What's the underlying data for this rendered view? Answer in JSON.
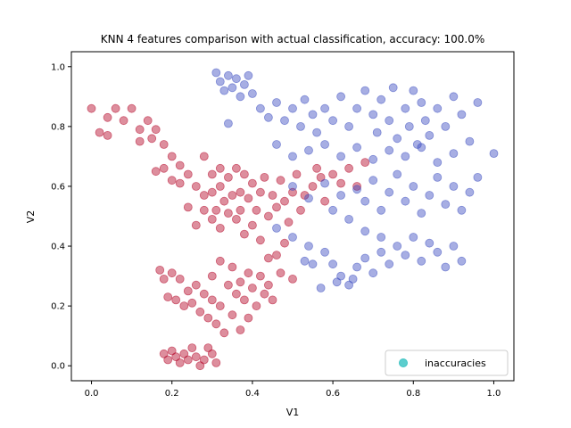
{
  "chart_data": {
    "type": "scatter",
    "title": "KNN 4 features comparison with actual classification, accuracy: 100.0%",
    "xlabel": "V1",
    "ylabel": "V2",
    "xlim": [
      -0.05,
      1.05
    ],
    "ylim": [
      -0.05,
      1.05
    ],
    "xticks": [
      "0.0",
      "0.2",
      "0.4",
      "0.6",
      "0.8",
      "1.0"
    ],
    "yticks": [
      "0.0",
      "0.2",
      "0.4",
      "0.6",
      "0.8",
      "1.0"
    ],
    "grid": false,
    "legend": {
      "position": "bottom-right",
      "entries": [
        "inaccuracies"
      ]
    },
    "colors": {
      "class_a": "#b40426",
      "class_b": "#3b4cc0",
      "inaccuracies": "#40c4c4"
    },
    "series": [
      {
        "class": "class_a",
        "points": [
          [
            0.0,
            0.86
          ],
          [
            0.02,
            0.78
          ],
          [
            0.04,
            0.77
          ],
          [
            0.04,
            0.83
          ],
          [
            0.06,
            0.86
          ],
          [
            0.08,
            0.82
          ],
          [
            0.1,
            0.86
          ],
          [
            0.12,
            0.79
          ],
          [
            0.12,
            0.75
          ],
          [
            0.14,
            0.82
          ],
          [
            0.15,
            0.76
          ],
          [
            0.16,
            0.79
          ],
          [
            0.16,
            0.65
          ],
          [
            0.18,
            0.74
          ],
          [
            0.18,
            0.66
          ],
          [
            0.2,
            0.7
          ],
          [
            0.2,
            0.62
          ],
          [
            0.22,
            0.67
          ],
          [
            0.22,
            0.61
          ],
          [
            0.24,
            0.64
          ],
          [
            0.24,
            0.53
          ],
          [
            0.26,
            0.6
          ],
          [
            0.26,
            0.47
          ],
          [
            0.28,
            0.7
          ],
          [
            0.28,
            0.57
          ],
          [
            0.28,
            0.52
          ],
          [
            0.3,
            0.64
          ],
          [
            0.3,
            0.58
          ],
          [
            0.3,
            0.49
          ],
          [
            0.31,
            0.52
          ],
          [
            0.32,
            0.66
          ],
          [
            0.32,
            0.6
          ],
          [
            0.32,
            0.46
          ],
          [
            0.33,
            0.55
          ],
          [
            0.34,
            0.63
          ],
          [
            0.34,
            0.51
          ],
          [
            0.35,
            0.57
          ],
          [
            0.36,
            0.66
          ],
          [
            0.36,
            0.49
          ],
          [
            0.37,
            0.58
          ],
          [
            0.37,
            0.52
          ],
          [
            0.38,
            0.64
          ],
          [
            0.38,
            0.44
          ],
          [
            0.39,
            0.56
          ],
          [
            0.4,
            0.61
          ],
          [
            0.4,
            0.47
          ],
          [
            0.41,
            0.52
          ],
          [
            0.42,
            0.58
          ],
          [
            0.42,
            0.42
          ],
          [
            0.43,
            0.63
          ],
          [
            0.44,
            0.5
          ],
          [
            0.45,
            0.57
          ],
          [
            0.46,
            0.53
          ],
          [
            0.47,
            0.62
          ],
          [
            0.48,
            0.55
          ],
          [
            0.49,
            0.48
          ],
          [
            0.5,
            0.58
          ],
          [
            0.51,
            0.64
          ],
          [
            0.52,
            0.52
          ],
          [
            0.53,
            0.57
          ],
          [
            0.55,
            0.6
          ],
          [
            0.56,
            0.66
          ],
          [
            0.57,
            0.63
          ],
          [
            0.58,
            0.55
          ],
          [
            0.6,
            0.64
          ],
          [
            0.62,
            0.61
          ],
          [
            0.64,
            0.66
          ],
          [
            0.66,
            0.6
          ],
          [
            0.68,
            0.68
          ],
          [
            0.48,
            0.41
          ],
          [
            0.46,
            0.37
          ],
          [
            0.44,
            0.36
          ],
          [
            0.47,
            0.31
          ],
          [
            0.5,
            0.29
          ],
          [
            0.17,
            0.32
          ],
          [
            0.18,
            0.29
          ],
          [
            0.2,
            0.31
          ],
          [
            0.19,
            0.23
          ],
          [
            0.21,
            0.22
          ],
          [
            0.22,
            0.29
          ],
          [
            0.23,
            0.2
          ],
          [
            0.24,
            0.25
          ],
          [
            0.25,
            0.21
          ],
          [
            0.26,
            0.27
          ],
          [
            0.27,
            0.18
          ],
          [
            0.28,
            0.24
          ],
          [
            0.29,
            0.16
          ],
          [
            0.3,
            0.3
          ],
          [
            0.3,
            0.22
          ],
          [
            0.31,
            0.14
          ],
          [
            0.32,
            0.35
          ],
          [
            0.32,
            0.2
          ],
          [
            0.33,
            0.11
          ],
          [
            0.34,
            0.27
          ],
          [
            0.35,
            0.33
          ],
          [
            0.35,
            0.17
          ],
          [
            0.36,
            0.24
          ],
          [
            0.37,
            0.28
          ],
          [
            0.37,
            0.12
          ],
          [
            0.38,
            0.22
          ],
          [
            0.39,
            0.31
          ],
          [
            0.39,
            0.16
          ],
          [
            0.4,
            0.26
          ],
          [
            0.41,
            0.2
          ],
          [
            0.42,
            0.3
          ],
          [
            0.43,
            0.24
          ],
          [
            0.44,
            0.27
          ],
          [
            0.45,
            0.22
          ],
          [
            0.18,
            0.04
          ],
          [
            0.19,
            0.02
          ],
          [
            0.2,
            0.05
          ],
          [
            0.21,
            0.03
          ],
          [
            0.22,
            0.01
          ],
          [
            0.23,
            0.04
          ],
          [
            0.24,
            0.02
          ],
          [
            0.25,
            0.06
          ],
          [
            0.26,
            0.03
          ],
          [
            0.27,
            0.0
          ],
          [
            0.28,
            0.02
          ],
          [
            0.29,
            0.06
          ],
          [
            0.3,
            0.04
          ],
          [
            0.31,
            0.01
          ]
        ]
      },
      {
        "class": "class_b",
        "points": [
          [
            0.31,
            0.98
          ],
          [
            0.32,
            0.95
          ],
          [
            0.33,
            0.92
          ],
          [
            0.34,
            0.97
          ],
          [
            0.35,
            0.93
          ],
          [
            0.36,
            0.96
          ],
          [
            0.37,
            0.9
          ],
          [
            0.38,
            0.94
          ],
          [
            0.39,
            0.97
          ],
          [
            0.4,
            0.91
          ],
          [
            0.34,
            0.81
          ],
          [
            0.42,
            0.86
          ],
          [
            0.44,
            0.83
          ],
          [
            0.46,
            0.88
          ],
          [
            0.48,
            0.82
          ],
          [
            0.5,
            0.86
          ],
          [
            0.52,
            0.8
          ],
          [
            0.53,
            0.89
          ],
          [
            0.55,
            0.84
          ],
          [
            0.56,
            0.78
          ],
          [
            0.58,
            0.86
          ],
          [
            0.6,
            0.82
          ],
          [
            0.62,
            0.9
          ],
          [
            0.64,
            0.8
          ],
          [
            0.66,
            0.86
          ],
          [
            0.68,
            0.92
          ],
          [
            0.7,
            0.84
          ],
          [
            0.71,
            0.78
          ],
          [
            0.72,
            0.89
          ],
          [
            0.74,
            0.82
          ],
          [
            0.75,
            0.93
          ],
          [
            0.76,
            0.76
          ],
          [
            0.78,
            0.86
          ],
          [
            0.79,
            0.8
          ],
          [
            0.8,
            0.92
          ],
          [
            0.81,
            0.74
          ],
          [
            0.82,
            0.88
          ],
          [
            0.83,
            0.82
          ],
          [
            0.84,
            0.77
          ],
          [
            0.86,
            0.86
          ],
          [
            0.88,
            0.8
          ],
          [
            0.9,
            0.9
          ],
          [
            0.92,
            0.84
          ],
          [
            0.94,
            0.75
          ],
          [
            0.96,
            0.88
          ],
          [
            1.0,
            0.71
          ],
          [
            0.46,
            0.74
          ],
          [
            0.5,
            0.7
          ],
          [
            0.54,
            0.72
          ],
          [
            0.58,
            0.74
          ],
          [
            0.62,
            0.7
          ],
          [
            0.66,
            0.73
          ],
          [
            0.7,
            0.69
          ],
          [
            0.74,
            0.72
          ],
          [
            0.78,
            0.7
          ],
          [
            0.82,
            0.73
          ],
          [
            0.86,
            0.68
          ],
          [
            0.9,
            0.71
          ],
          [
            0.5,
            0.6
          ],
          [
            0.54,
            0.56
          ],
          [
            0.58,
            0.61
          ],
          [
            0.6,
            0.52
          ],
          [
            0.62,
            0.57
          ],
          [
            0.64,
            0.49
          ],
          [
            0.66,
            0.59
          ],
          [
            0.68,
            0.55
          ],
          [
            0.7,
            0.62
          ],
          [
            0.72,
            0.52
          ],
          [
            0.74,
            0.58
          ],
          [
            0.76,
            0.64
          ],
          [
            0.78,
            0.55
          ],
          [
            0.8,
            0.6
          ],
          [
            0.82,
            0.51
          ],
          [
            0.84,
            0.57
          ],
          [
            0.86,
            0.63
          ],
          [
            0.88,
            0.54
          ],
          [
            0.9,
            0.6
          ],
          [
            0.92,
            0.52
          ],
          [
            0.94,
            0.58
          ],
          [
            0.96,
            0.63
          ],
          [
            0.46,
            0.46
          ],
          [
            0.5,
            0.43
          ],
          [
            0.54,
            0.4
          ],
          [
            0.58,
            0.38
          ],
          [
            0.6,
            0.34
          ],
          [
            0.62,
            0.3
          ],
          [
            0.64,
            0.27
          ],
          [
            0.66,
            0.33
          ],
          [
            0.68,
            0.36
          ],
          [
            0.7,
            0.31
          ],
          [
            0.72,
            0.38
          ],
          [
            0.74,
            0.34
          ],
          [
            0.76,
            0.4
          ],
          [
            0.78,
            0.37
          ],
          [
            0.8,
            0.43
          ],
          [
            0.82,
            0.35
          ],
          [
            0.84,
            0.41
          ],
          [
            0.86,
            0.38
          ],
          [
            0.88,
            0.33
          ],
          [
            0.9,
            0.4
          ],
          [
            0.92,
            0.35
          ],
          [
            0.57,
            0.26
          ],
          [
            0.61,
            0.28
          ],
          [
            0.65,
            0.29
          ],
          [
            0.68,
            0.45
          ],
          [
            0.72,
            0.43
          ],
          [
            0.55,
            0.34
          ],
          [
            0.53,
            0.35
          ]
        ]
      }
    ]
  }
}
